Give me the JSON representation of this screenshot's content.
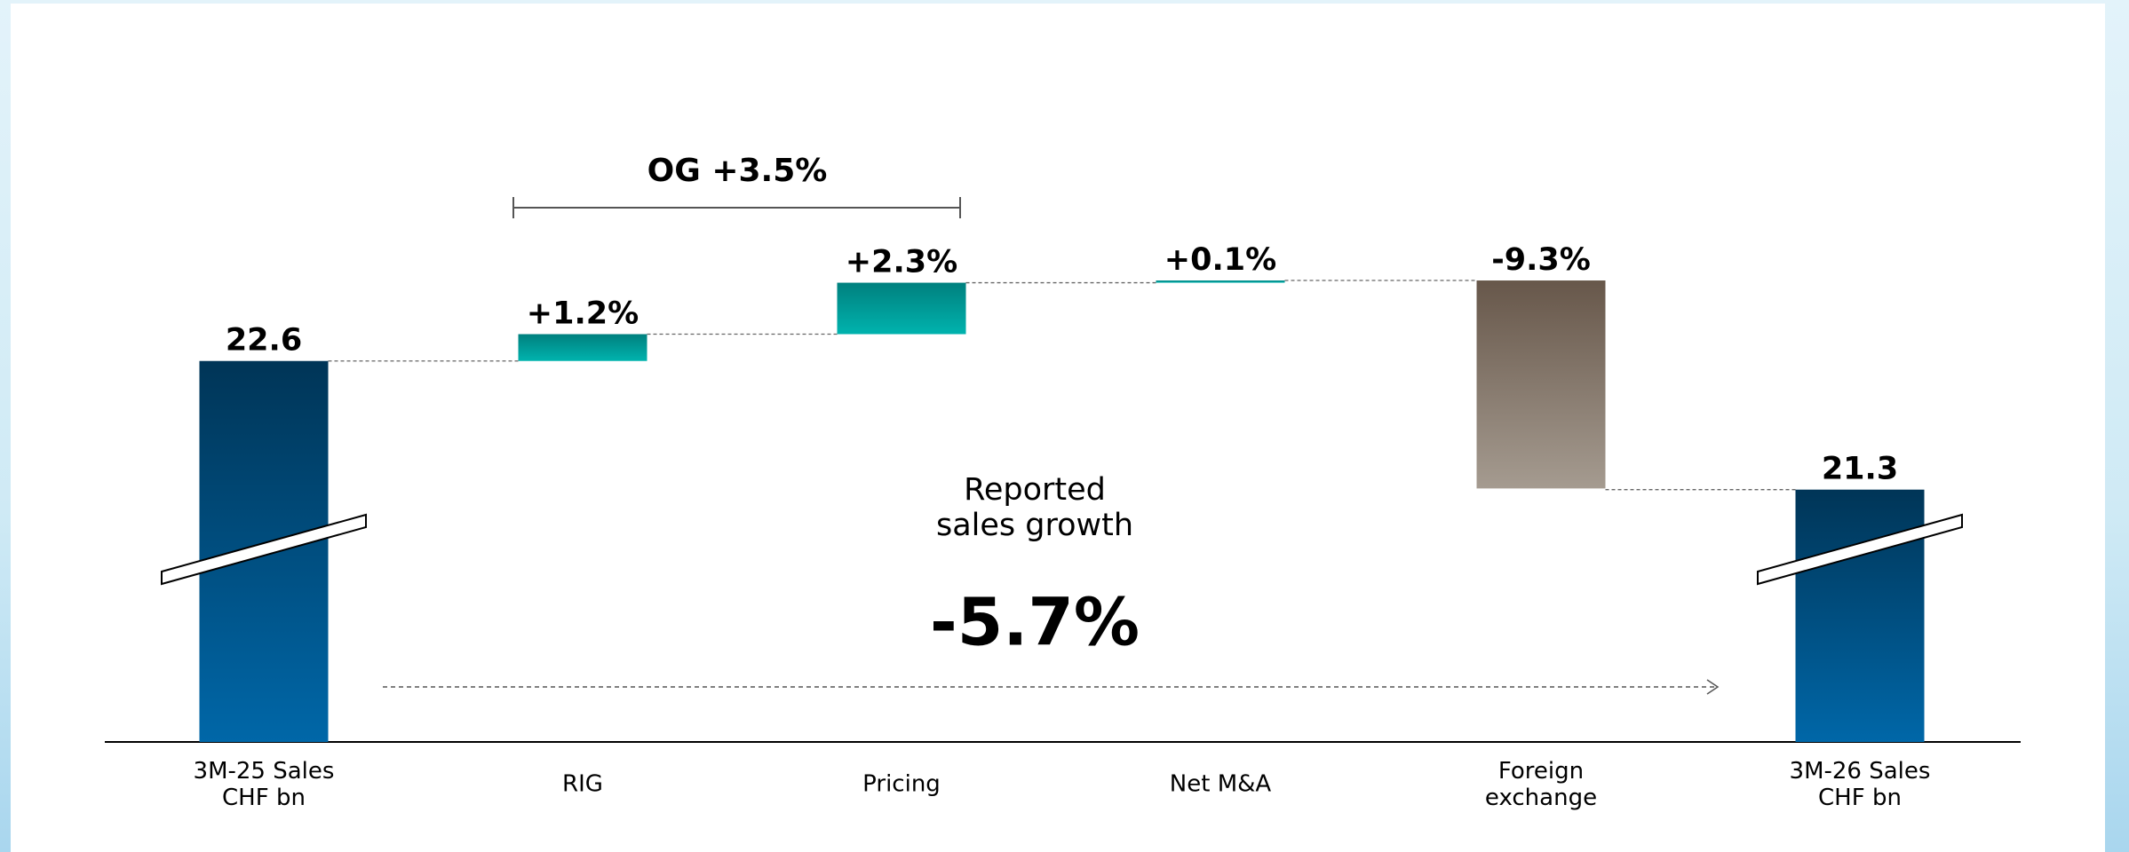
{
  "chart_data": {
    "type": "waterfall",
    "categories": [
      "3M-25 Sales\nCHF bn",
      "RIG",
      "Pricing",
      "Net M&A",
      "Foreign\nexchange",
      "3M-26 Sales\nCHF bn"
    ],
    "kinds": [
      "total",
      "step",
      "step",
      "step",
      "step",
      "total"
    ],
    "values": [
      22.6,
      1.2,
      2.3,
      0.1,
      -9.3,
      21.3
    ],
    "value_labels": [
      "22.6",
      "+1.2%",
      "+2.3%",
      "+0.1%",
      "-9.3%",
      "21.3"
    ],
    "colors": [
      [
        "#003557",
        "#0067a8"
      ],
      [
        "#00807e",
        "#00b3ae"
      ],
      [
        "#00807e",
        "#00b3ae"
      ],
      [
        "#00807e",
        "#00b3ae"
      ],
      [
        "#67574a",
        "#a59b90"
      ],
      [
        "#003557",
        "#0067a8"
      ]
    ],
    "ylim": [
      18.75,
      23.1
    ],
    "bracket_label": "OG +3.5%",
    "growth_label": "Reported\nsales growth",
    "growth_value": "-5.7%"
  }
}
